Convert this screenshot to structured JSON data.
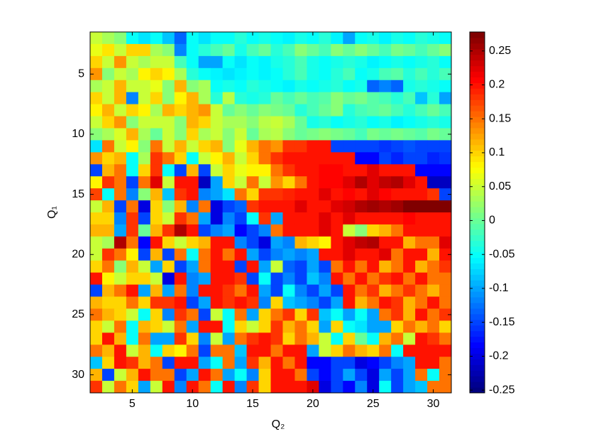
{
  "chart_data": {
    "type": "heatmap",
    "xlabel": "Q₂",
    "ylabel": "Q₁",
    "colormap": "jet",
    "x": [
      2,
      3,
      4,
      5,
      6,
      7,
      8,
      9,
      10,
      11,
      12,
      13,
      14,
      15,
      16,
      17,
      18,
      19,
      20,
      21,
      22,
      23,
      24,
      25,
      26,
      27,
      28,
      29,
      30,
      31
    ],
    "y": [
      2,
      3,
      4,
      5,
      6,
      7,
      8,
      9,
      10,
      11,
      12,
      13,
      14,
      15,
      16,
      17,
      18,
      19,
      20,
      21,
      22,
      23,
      24,
      25,
      26,
      27,
      28,
      29,
      30,
      31
    ],
    "xlim": [
      1.5,
      31.5
    ],
    "ylim": [
      1.5,
      31.5
    ],
    "xticks": [
      5,
      10,
      15,
      20,
      25,
      30
    ],
    "yticks": [
      5,
      10,
      15,
      20,
      25,
      30
    ],
    "clim": [
      -0.254,
      0.278
    ],
    "cticks": [
      -0.25,
      -0.2,
      -0.15,
      -0.1,
      -0.05,
      0,
      0.05,
      0.1,
      0.15,
      0.2,
      0.25
    ],
    "z": [
      [
        0.05,
        0.03,
        0.02,
        -0.05,
        -0.07,
        -0.05,
        -0.08,
        -0.13,
        -0.05,
        -0.07,
        -0.05,
        -0.05,
        -0.03,
        -0.05,
        -0.04,
        -0.05,
        -0.06,
        -0.04,
        -0.05,
        -0.03,
        -0.06,
        -0.1,
        -0.05,
        -0.04,
        -0.06,
        -0.04,
        -0.05,
        -0.03,
        -0.04,
        -0.05
      ],
      [
        0.07,
        0.09,
        0.05,
        0.1,
        0.1,
        0.03,
        0.02,
        -0.12,
        -0.05,
        -0.03,
        -0.02,
        0.0,
        -0.04,
        -0.02,
        0.0,
        -0.03,
        -0.02,
        0.02,
        0.0,
        -0.02,
        0.02,
        0.0,
        0.02,
        0.0,
        -0.02,
        0.01,
        0.0,
        -0.02,
        0.0,
        0.02
      ],
      [
        0.1,
        0.05,
        0.13,
        0.05,
        0.03,
        0.05,
        0.05,
        -0.02,
        -0.05,
        -0.1,
        -0.1,
        -0.05,
        -0.07,
        -0.05,
        -0.06,
        -0.04,
        -0.03,
        -0.02,
        -0.04,
        -0.05,
        -0.04,
        -0.03,
        -0.04,
        -0.06,
        -0.05,
        -0.04,
        -0.05,
        -0.04,
        -0.03,
        -0.05
      ],
      [
        0.13,
        0.02,
        0.05,
        0.03,
        0.08,
        0.1,
        0.08,
        0.03,
        -0.03,
        -0.05,
        -0.06,
        -0.07,
        -0.06,
        -0.05,
        -0.06,
        -0.05,
        -0.03,
        -0.02,
        -0.04,
        -0.05,
        -0.03,
        -0.02,
        -0.05,
        -0.04,
        -0.02,
        -0.01,
        -0.03,
        -0.02,
        -0.03,
        -0.02
      ],
      [
        0.03,
        0.05,
        0.12,
        0.05,
        0.05,
        0.07,
        0.02,
        0.12,
        0.02,
        0.03,
        -0.05,
        -0.04,
        -0.05,
        -0.03,
        -0.04,
        -0.05,
        -0.06,
        -0.04,
        -0.05,
        -0.04,
        -0.03,
        -0.05,
        -0.04,
        -0.13,
        -0.12,
        -0.13,
        -0.04,
        -0.03,
        -0.04,
        -0.05
      ],
      [
        0.1,
        0.05,
        0.12,
        -0.12,
        0.05,
        0.1,
        0.02,
        0.08,
        0.12,
        0.03,
        -0.03,
        0.04,
        -0.03,
        -0.04,
        -0.03,
        0.0,
        -0.02,
        0.0,
        -0.02,
        -0.01,
        0.02,
        0.0,
        0.01,
        -0.01,
        -0.02,
        -0.03,
        -0.02,
        -0.08,
        -0.03,
        -0.1
      ],
      [
        0.08,
        0.12,
        0.05,
        0.1,
        0.08,
        0.03,
        0.12,
        0.1,
        0.12,
        0.13,
        0.05,
        0.0,
        0.02,
        0.0,
        0.02,
        0.01,
        0.0,
        -0.03,
        -0.02,
        0.0,
        0.02,
        -0.03,
        -0.02,
        -0.01,
        0.0,
        -0.02,
        -0.03,
        -0.02,
        0.0,
        -0.02
      ],
      [
        0.05,
        0.1,
        0.13,
        0.02,
        0.05,
        0.05,
        0.05,
        0.02,
        0.12,
        0.1,
        0.05,
        0.03,
        0.03,
        0.02,
        0.04,
        0.05,
        0.03,
        0.0,
        -0.04,
        -0.03,
        -0.05,
        -0.04,
        -0.03,
        -0.05,
        -0.04,
        -0.06,
        -0.05,
        -0.04,
        -0.03,
        -0.04
      ],
      [
        0.02,
        0.03,
        0.06,
        0.12,
        0.03,
        0.0,
        0.05,
        0.02,
        0.1,
        0.03,
        0.05,
        0.02,
        0.05,
        0.0,
        0.03,
        0.04,
        0.02,
        0.0,
        0.01,
        0.02,
        0.01,
        0.0,
        -0.02,
        0.01,
        0.0,
        0.01,
        0.0,
        -0.01,
        0.01,
        0.0
      ],
      [
        -0.07,
        0.15,
        0.05,
        0.08,
        0.02,
        0.15,
        0.05,
        0.12,
        0.05,
        0.1,
        0.12,
        0.02,
        0.07,
        0.12,
        0.15,
        0.13,
        0.18,
        0.18,
        0.2,
        0.2,
        -0.15,
        -0.15,
        -0.15,
        -0.15,
        -0.16,
        -0.15,
        -0.14,
        -0.15,
        -0.15,
        -0.15
      ],
      [
        0.13,
        0.1,
        0.12,
        -0.05,
        0.03,
        0.18,
        0.15,
        0.1,
        -0.05,
        0.05,
        0.08,
        0.12,
        0.05,
        0.1,
        0.15,
        0.18,
        0.2,
        0.2,
        0.2,
        0.2,
        0.2,
        0.2,
        -0.18,
        -0.18,
        -0.15,
        -0.17,
        -0.15,
        -0.15,
        -0.17,
        -0.16
      ],
      [
        -0.15,
        0.12,
        0.15,
        -0.05,
        0.1,
        0.18,
        -0.05,
        -0.15,
        0.12,
        -0.15,
        0.05,
        0.1,
        0.07,
        0.08,
        0.08,
        0.15,
        0.18,
        0.2,
        0.2,
        0.21,
        0.21,
        0.2,
        0.2,
        0.22,
        0.2,
        0.2,
        0.2,
        -0.18,
        -0.18,
        -0.18
      ],
      [
        0.08,
        0.18,
        0.15,
        -0.15,
        0.15,
        0.22,
        0.05,
        0.2,
        0.2,
        -0.22,
        -0.1,
        0.1,
        0.05,
        0.15,
        0.05,
        0.13,
        0.1,
        0.15,
        0.2,
        0.21,
        0.21,
        0.22,
        0.25,
        0.22,
        0.24,
        0.25,
        0.22,
        0.2,
        -0.22,
        -0.22
      ],
      [
        0.17,
        -0.05,
        0.15,
        -0.12,
        0.02,
        0.12,
        -0.08,
        0.18,
        0.2,
        -0.12,
        -0.1,
        -0.07,
        0.15,
        0.1,
        0.18,
        0.18,
        0.19,
        0.2,
        0.2,
        0.22,
        0.2,
        0.21,
        0.2,
        0.22,
        0.21,
        0.2,
        0.2,
        0.2,
        0.18,
        -0.15
      ],
      [
        0.05,
        0.12,
        -0.15,
        0.15,
        -0.2,
        0.1,
        0.02,
        0.12,
        -0.12,
        0.15,
        -0.2,
        -0.15,
        -0.13,
        0.18,
        0.2,
        0.2,
        0.2,
        0.22,
        0.2,
        0.2,
        0.22,
        0.23,
        0.25,
        0.26,
        0.25,
        0.26,
        0.27,
        0.27,
        0.27,
        0.27
      ],
      [
        0.1,
        0.1,
        -0.12,
        0.18,
        -0.15,
        0.1,
        0.05,
        0.18,
        0.15,
        -0.1,
        -0.2,
        -0.12,
        -0.15,
        -0.05,
        0.18,
        -0.1,
        0.2,
        0.2,
        0.2,
        0.22,
        0.2,
        0.22,
        0.2,
        0.2,
        0.2,
        0.2,
        0.21,
        0.2,
        0.2,
        0.2
      ],
      [
        0.12,
        0.12,
        -0.1,
        0.18,
        0.0,
        0.12,
        0.18,
        0.25,
        0.2,
        -0.15,
        -0.12,
        -0.1,
        -0.18,
        -0.15,
        -0.12,
        0.15,
        0.2,
        0.2,
        0.2,
        0.22,
        0.2,
        0.05,
        0.02,
        0.1,
        0.12,
        0.15,
        0.2,
        0.2,
        0.2,
        0.2
      ],
      [
        0.05,
        0.03,
        0.25,
        0.15,
        -0.18,
        0.2,
        0.1,
        0.05,
        0.1,
        0.12,
        0.2,
        0.2,
        -0.12,
        -0.15,
        -0.2,
        -0.1,
        -0.12,
        0.12,
        0.1,
        0.08,
        0.2,
        0.22,
        0.24,
        0.25,
        0.2,
        0.2,
        0.12,
        0.15,
        0.15,
        0.22
      ],
      [
        0.05,
        0.18,
        0.15,
        0.08,
        -0.15,
        0.12,
        -0.15,
        0.15,
        -0.05,
        0.15,
        0.2,
        0.15,
        0.2,
        -0.1,
        -0.15,
        -0.12,
        -0.1,
        -0.12,
        -0.1,
        0.2,
        0.2,
        0.22,
        0.2,
        0.2,
        0.22,
        0.15,
        0.2,
        0.2,
        0.12,
        0.2
      ],
      [
        0.1,
        0.15,
        0.02,
        0.12,
        0.05,
        -0.1,
        0.1,
        -0.15,
        -0.1,
        0.15,
        0.2,
        0.2,
        -0.15,
        0.2,
        -0.1,
        0.05,
        -0.13,
        -0.15,
        -0.1,
        -0.15,
        0.15,
        0.2,
        0.15,
        0.2,
        0.12,
        0.15,
        0.2,
        0.12,
        0.15,
        0.18
      ],
      [
        0.2,
        0.08,
        0.05,
        0.1,
        0.1,
        0.05,
        -0.2,
        0.2,
        -0.12,
        -0.1,
        0.2,
        0.2,
        0.18,
        -0.15,
        -0.05,
        -0.15,
        -0.12,
        -0.15,
        -0.08,
        -0.12,
        0.2,
        0.15,
        0.2,
        0.15,
        0.18,
        0.2,
        0.15,
        0.2,
        0.15,
        0.15
      ],
      [
        -0.15,
        0.12,
        0.15,
        0.2,
        -0.1,
        0.12,
        -0.1,
        0.15,
        -0.12,
        0.2,
        0.2,
        0.18,
        0.15,
        0.2,
        -0.1,
        -0.15,
        -0.05,
        -0.12,
        -0.15,
        -0.1,
        -0.15,
        0.2,
        0.15,
        0.18,
        0.12,
        0.15,
        0.18,
        0.15,
        0.12,
        0.15
      ],
      [
        0.12,
        0.1,
        0.1,
        0.15,
        0.1,
        0.18,
        0.18,
        0.2,
        -0.15,
        -0.1,
        0.2,
        0.18,
        0.2,
        0.18,
        -0.12,
        0.1,
        -0.08,
        -0.1,
        -0.12,
        -0.15,
        -0.1,
        0.2,
        0.12,
        0.15,
        0.2,
        0.18,
        0.12,
        0.15,
        0.2,
        0.15
      ],
      [
        0.15,
        0.12,
        0.1,
        0.05,
        -0.05,
        0.1,
        -0.12,
        0.18,
        0.15,
        -0.15,
        0.05,
        -0.05,
        0.15,
        -0.1,
        0.1,
        0.15,
        0.18,
        0.1,
        0.18,
        -0.08,
        -0.05,
        -0.1,
        -0.05,
        -0.1,
        0.15,
        0.18,
        0.12,
        0.2,
        0.15,
        0.18
      ],
      [
        0.1,
        0.05,
        0.15,
        -0.05,
        0.12,
        0.1,
        0.05,
        0.15,
        -0.1,
        0.2,
        0.2,
        -0.05,
        0.1,
        0.05,
        0.1,
        0.18,
        0.12,
        0.15,
        0.1,
        -0.1,
        0.1,
        -0.05,
        -0.07,
        -0.1,
        -0.1,
        0.1,
        0.15,
        0.12,
        0.15,
        0.1
      ],
      [
        0.1,
        0.2,
        0.12,
        -0.05,
        0.15,
        -0.1,
        -0.1,
        0.18,
        0.1,
        -0.12,
        0.05,
        -0.1,
        0.15,
        0.18,
        0.2,
        0.18,
        0.1,
        0.15,
        0.12,
        0.05,
        -0.05,
        0.1,
        0.0,
        -0.05,
        0.12,
        0.15,
        0.05,
        0.2,
        0.18,
        0.15
      ],
      [
        0.15,
        0.12,
        0.2,
        0.05,
        0.12,
        -0.05,
        0.1,
        0.08,
        0.15,
        -0.15,
        0.15,
        0.15,
        -0.08,
        0.2,
        0.2,
        0.15,
        0.2,
        0.2,
        -0.1,
        0.05,
        0.1,
        0.15,
        0.12,
        0.1,
        0.15,
        -0.05,
        0.2,
        0.2,
        0.2,
        0.2
      ],
      [
        -0.08,
        0.1,
        0.2,
        0.18,
        0.12,
        0.15,
        -0.15,
        0.2,
        0.2,
        -0.1,
        -0.05,
        0.15,
        -0.1,
        0.18,
        0.12,
        0.2,
        0.15,
        0.2,
        -0.18,
        -0.18,
        -0.15,
        -0.15,
        -0.2,
        -0.18,
        -0.15,
        -0.12,
        -0.1,
        0.2,
        0.2,
        0.15
      ],
      [
        0.12,
        -0.15,
        0.05,
        0.12,
        0.2,
        0.15,
        0.15,
        -0.15,
        -0.1,
        0.2,
        0.15,
        -0.1,
        -0.05,
        -0.12,
        0.1,
        0.2,
        0.2,
        0.15,
        -0.15,
        -0.18,
        -0.15,
        -0.1,
        -0.15,
        -0.2,
        -0.1,
        -0.15,
        -0.1,
        0.15,
        -0.05,
        0.15
      ],
      [
        0.18,
        0.05,
        0.15,
        0.1,
        -0.1,
        0.05,
        0.2,
        -0.12,
        0.2,
        0.15,
        -0.05,
        0.2,
        -0.12,
        0.18,
        0.1,
        0.2,
        0.2,
        0.2,
        0.22,
        -0.2,
        -0.15,
        -0.18,
        -0.12,
        -0.2,
        -0.05,
        -0.15,
        -0.1,
        -0.08,
        0.15,
        0.15
      ]
    ]
  }
}
